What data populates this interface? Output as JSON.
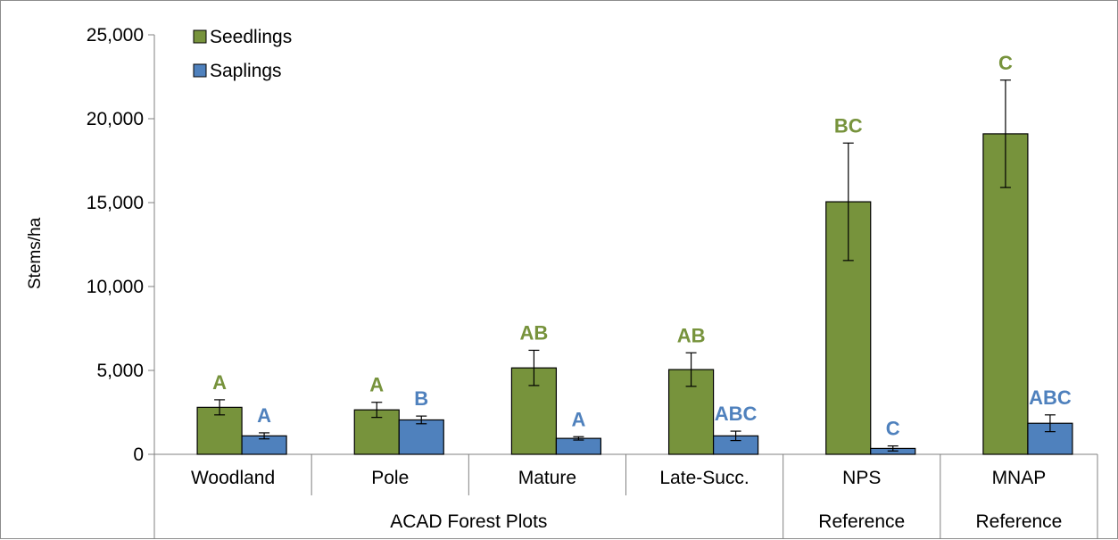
{
  "chart_data": {
    "type": "bar",
    "ylabel": "Stems/ha",
    "ylim": [
      0,
      25000
    ],
    "yticks": [
      0,
      5000,
      10000,
      15000,
      20000,
      25000
    ],
    "ytick_labels": [
      "0",
      "5,000",
      "10,000",
      "15,000",
      "20,000",
      "25,000"
    ],
    "categories": [
      "Woodland",
      "Pole",
      "Mature",
      "Late-Succ.",
      "NPS",
      "MNAP"
    ],
    "category_groups": [
      {
        "label": "ACAD Forest Plots",
        "span": 4
      },
      {
        "label": "Reference",
        "span": 1
      },
      {
        "label": "Reference",
        "span": 1
      }
    ],
    "legend_position": "top-left",
    "grid": false,
    "series": [
      {
        "name": "Seedlings",
        "color": "#77933c",
        "values": [
          2800,
          2650,
          5150,
          5050,
          15050,
          19100
        ],
        "error": [
          450,
          450,
          1050,
          1000,
          3500,
          3200
        ],
        "labels": [
          "A",
          "A",
          "AB",
          "AB",
          "BC",
          "C"
        ]
      },
      {
        "name": "Saplings",
        "color": "#4f81bd",
        "values": [
          1100,
          2050,
          950,
          1100,
          350,
          1850
        ],
        "error": [
          180,
          230,
          100,
          280,
          150,
          500
        ],
        "labels": [
          "A",
          "B",
          "A",
          "ABC",
          "C",
          "ABC"
        ]
      }
    ]
  }
}
